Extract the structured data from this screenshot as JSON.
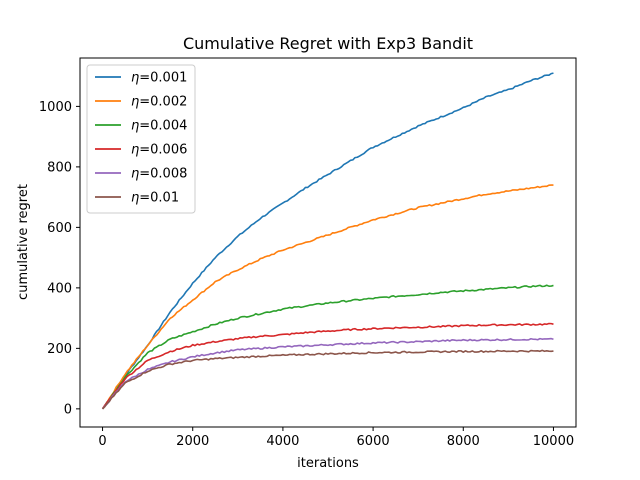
{
  "chart_data": {
    "type": "line",
    "title": "Cumulative Regret with Exp3 Bandit",
    "xlabel": "iterations",
    "ylabel": "cumulative regret",
    "xlim": [
      -500,
      10500
    ],
    "ylim": [
      -60,
      1160
    ],
    "xticks": [
      0,
      2000,
      4000,
      6000,
      8000,
      10000
    ],
    "yticks": [
      0,
      200,
      400,
      600,
      800,
      1000
    ],
    "grid": false,
    "legend_placement": "top-left",
    "x": [
      0,
      500,
      1000,
      1500,
      2000,
      2500,
      3000,
      3500,
      4000,
      4500,
      5000,
      5500,
      6000,
      6500,
      7000,
      7500,
      8000,
      8500,
      9000,
      9500,
      10000
    ],
    "series": [
      {
        "name": "η=0.001",
        "label_prefix": "η",
        "label_value": "=0.001",
        "color": "#1f77b4",
        "values": [
          0,
          110,
          210,
          320,
          415,
          500,
          570,
          630,
          680,
          730,
          775,
          820,
          865,
          900,
          935,
          965,
          995,
          1030,
          1055,
          1085,
          1110
        ]
      },
      {
        "name": "η=0.002",
        "label_prefix": "η",
        "label_value": "=0.002",
        "color": "#ff7f0e",
        "values": [
          0,
          115,
          210,
          300,
          360,
          420,
          460,
          495,
          525,
          550,
          575,
          600,
          625,
          645,
          665,
          680,
          695,
          710,
          720,
          730,
          740
        ]
      },
      {
        "name": "η=0.004",
        "label_prefix": "η",
        "label_value": "=0.004",
        "color": "#2ca02c",
        "values": [
          0,
          105,
          185,
          230,
          255,
          280,
          300,
          315,
          330,
          340,
          350,
          358,
          365,
          372,
          378,
          385,
          390,
          395,
          400,
          405,
          408
        ]
      },
      {
        "name": "η=0.006",
        "label_prefix": "η",
        "label_value": "=0.006",
        "color": "#d62728",
        "values": [
          0,
          100,
          160,
          190,
          210,
          222,
          232,
          240,
          245,
          252,
          257,
          262,
          265,
          268,
          270,
          272,
          275,
          277,
          278,
          279,
          280
        ]
      },
      {
        "name": "η=0.008",
        "label_prefix": "η",
        "label_value": "=0.008",
        "color": "#9467bd",
        "values": [
          0,
          90,
          130,
          155,
          172,
          185,
          195,
          200,
          205,
          208,
          212,
          215,
          218,
          220,
          222,
          225,
          227,
          228,
          229,
          230,
          230
        ]
      },
      {
        "name": "η=0.01",
        "label_prefix": "η",
        "label_value": "=0.01",
        "color": "#8c564b",
        "values": [
          0,
          85,
          125,
          148,
          160,
          166,
          170,
          174,
          177,
          180,
          182,
          184,
          186,
          187,
          188,
          189,
          190,
          190,
          191,
          191,
          191
        ]
      }
    ]
  }
}
